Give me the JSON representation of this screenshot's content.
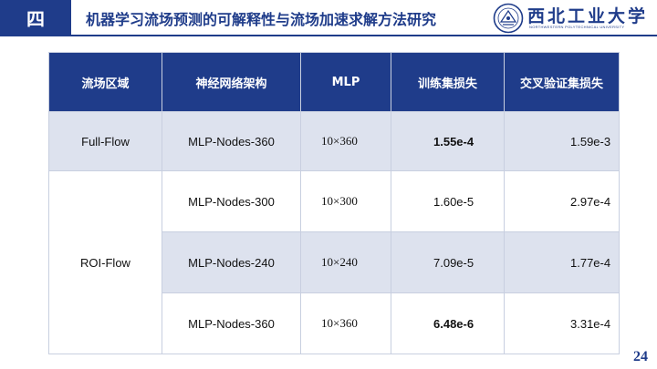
{
  "header": {
    "section_number": "四",
    "title": "机器学习流场预测的可解释性与流场加速求解方法研究"
  },
  "logo": {
    "name": "西北工业大学",
    "english": "NORTHWESTERN POLYTECHNICAL UNIVERSITY"
  },
  "table": {
    "headers": [
      "流场区域",
      "神经网络架构",
      "MLP",
      "训练集损失",
      "交叉验证集损失"
    ],
    "rows": [
      {
        "region": "Full-Flow",
        "arch": "MLP-Nodes-360",
        "mlp": "10×360",
        "train_loss": "1.55e-4",
        "val_loss": "1.59e-3"
      },
      {
        "region": "ROI-Flow",
        "arch": "MLP-Nodes-300",
        "mlp": "10×300",
        "train_loss": "1.60e-5",
        "val_loss": "2.97e-4"
      },
      {
        "region": "",
        "arch": "MLP-Nodes-240",
        "mlp": "10×240",
        "train_loss": "7.09e-5",
        "val_loss": "1.77e-4"
      },
      {
        "region": "",
        "arch": "MLP-Nodes-360",
        "mlp": "10×360",
        "train_loss": "6.48e-6",
        "val_loss": "3.31e-4"
      }
    ]
  },
  "page_number": "24",
  "colors": {
    "brand_blue": "#1f3c8a",
    "highlight_red": "#b83a4b",
    "row_shade": "#dde2ee"
  }
}
